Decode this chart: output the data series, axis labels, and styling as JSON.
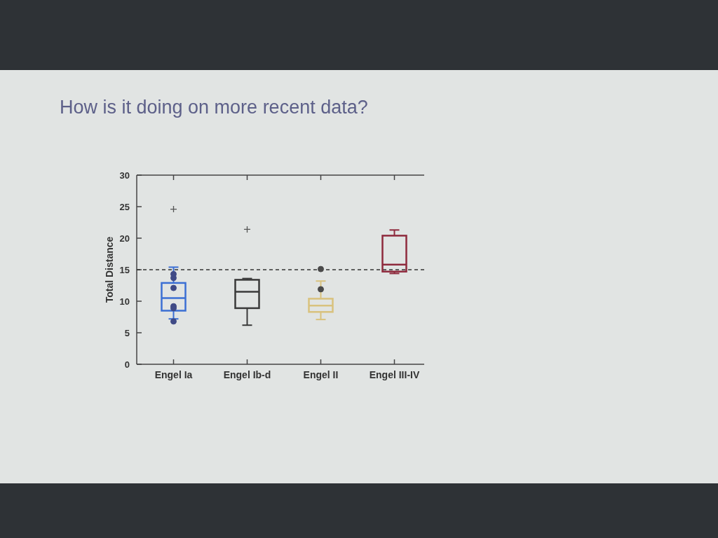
{
  "chart_data": {
    "type": "box",
    "title": "How is it doing on more recent data?",
    "ylabel": "Total Distance",
    "categories": [
      "Engel Ia",
      "Engel Ib-d",
      "Engel II",
      "Engel III-IV"
    ],
    "ylim": [
      0,
      30
    ],
    "yticks": [
      0,
      5,
      10,
      15,
      20,
      25,
      30
    ],
    "marker": "circle",
    "series": [
      {
        "type": "box",
        "colors": [
          "#3b6fd4",
          "#3a3a3a",
          "#d9c27e",
          "#8e2a3d"
        ],
        "boxes": [
          {
            "low": 7.2,
            "q1": 8.5,
            "median": 10.5,
            "q3": 12.9,
            "high": 15.4,
            "outliers": [
              24.6
            ]
          },
          {
            "low": 6.2,
            "q1": 8.9,
            "median": 11.5,
            "q3": 13.4,
            "high": 13.6,
            "outliers": [
              21.4
            ]
          },
          {
            "low": 7.1,
            "q1": 8.3,
            "median": 9.3,
            "q3": 10.4,
            "high": 13.2
          },
          {
            "low": 14.4,
            "q1": 14.7,
            "median": 15.8,
            "q3": 20.4,
            "high": 21.3
          }
        ]
      },
      {
        "type": "scatter",
        "color": "#3f4a86",
        "x": [
          "Engel Ia",
          "Engel Ia",
          "Engel Ia",
          "Engel Ia",
          "Engel Ia",
          "Engel Ia"
        ],
        "values": [
          14.3,
          13.7,
          12.1,
          9.2,
          8.9,
          6.8
        ]
      },
      {
        "type": "scatter",
        "color": "#4a4a4a",
        "x": [
          "Engel II",
          "Engel II"
        ],
        "values": [
          15.1,
          11.9
        ]
      }
    ],
    "ref_lines": [
      {
        "axis": "y",
        "value": 15,
        "color": "#333333",
        "line_style": "dashed"
      }
    ]
  }
}
